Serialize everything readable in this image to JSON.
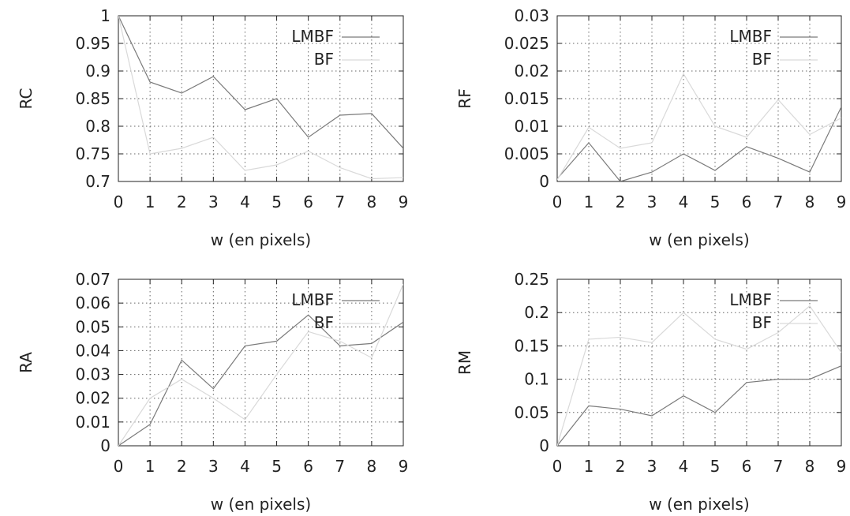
{
  "chart_data": [
    {
      "type": "line",
      "title": "",
      "xlabel": "w (en pixels)",
      "ylabel": "RC",
      "xlim": [
        0,
        9
      ],
      "ylim": [
        0.7,
        1
      ],
      "xticks": [
        "0",
        "1",
        "2",
        "3",
        "4",
        "5",
        "6",
        "7",
        "8",
        "9"
      ],
      "yticks": [
        "0.7",
        "0.75",
        "0.8",
        "0.85",
        "0.9",
        "0.95",
        "1"
      ],
      "grid": true,
      "legend": "top-right",
      "x": [
        0,
        1,
        2,
        3,
        4,
        5,
        6,
        7,
        8,
        9
      ],
      "series": [
        {
          "name": "LMBF",
          "color": "#7a7a7a",
          "values": [
            1.0,
            0.88,
            0.86,
            0.89,
            0.83,
            0.85,
            0.78,
            0.82,
            0.823,
            0.76
          ]
        },
        {
          "name": "BF",
          "color": "#d9d9d9",
          "values": [
            1.0,
            0.75,
            0.76,
            0.78,
            0.72,
            0.73,
            0.755,
            0.725,
            0.705,
            0.707
          ]
        }
      ]
    },
    {
      "type": "line",
      "title": "",
      "xlabel": "w (en pixels)",
      "ylabel": "RF",
      "xlim": [
        0,
        9
      ],
      "ylim": [
        0,
        0.03
      ],
      "xticks": [
        "0",
        "1",
        "2",
        "3",
        "4",
        "5",
        "6",
        "7",
        "8",
        "9"
      ],
      "yticks": [
        "0",
        "0.005",
        "0.01",
        "0.015",
        "0.02",
        "0.025",
        "0.03"
      ],
      "grid": true,
      "legend": "top-right",
      "x": [
        0,
        1,
        2,
        3,
        4,
        5,
        6,
        7,
        8,
        9
      ],
      "series": [
        {
          "name": "LMBF",
          "color": "#7a7a7a",
          "values": [
            0.0005,
            0.007,
            0.0,
            0.0017,
            0.005,
            0.002,
            0.0063,
            0.0042,
            0.0017,
            0.0135
          ]
        },
        {
          "name": "BF",
          "color": "#d9d9d9",
          "values": [
            0.0003,
            0.0098,
            0.006,
            0.007,
            0.0195,
            0.01,
            0.008,
            0.0148,
            0.0085,
            0.0115
          ]
        }
      ]
    },
    {
      "type": "line",
      "title": "",
      "xlabel": "w (en pixels)",
      "ylabel": "RA",
      "xlim": [
        0,
        9
      ],
      "ylim": [
        0,
        0.07
      ],
      "xticks": [
        "0",
        "1",
        "2",
        "3",
        "4",
        "5",
        "6",
        "7",
        "8",
        "9"
      ],
      "yticks": [
        "0",
        "0.01",
        "0.02",
        "0.03",
        "0.04",
        "0.05",
        "0.06",
        "0.07"
      ],
      "grid": true,
      "legend": "top-right",
      "x": [
        0,
        1,
        2,
        3,
        4,
        5,
        6,
        7,
        8,
        9
      ],
      "series": [
        {
          "name": "LMBF",
          "color": "#7a7a7a",
          "values": [
            0.0,
            0.009,
            0.036,
            0.024,
            0.042,
            0.044,
            0.055,
            0.042,
            0.043,
            0.052
          ]
        },
        {
          "name": "BF",
          "color": "#d9d9d9",
          "values": [
            0.0,
            0.02,
            0.028,
            0.02,
            0.011,
            0.03,
            0.048,
            0.044,
            0.037,
            0.068
          ]
        }
      ]
    },
    {
      "type": "line",
      "title": "",
      "xlabel": "w (en pixels)",
      "ylabel": "RM",
      "xlim": [
        0,
        9
      ],
      "ylim": [
        0,
        0.25
      ],
      "xticks": [
        "0",
        "1",
        "2",
        "3",
        "4",
        "5",
        "6",
        "7",
        "8",
        "9"
      ],
      "yticks": [
        "0",
        "0.05",
        "0.1",
        "0.15",
        "0.2",
        "0.25"
      ],
      "grid": true,
      "legend": "top-right",
      "x": [
        0,
        1,
        2,
        3,
        4,
        5,
        6,
        7,
        8,
        9
      ],
      "series": [
        {
          "name": "LMBF",
          "color": "#7a7a7a",
          "values": [
            0.0,
            0.06,
            0.055,
            0.045,
            0.075,
            0.05,
            0.095,
            0.1,
            0.1,
            0.12
          ]
        },
        {
          "name": "BF",
          "color": "#d9d9d9",
          "values": [
            0.0,
            0.16,
            0.163,
            0.155,
            0.2,
            0.16,
            0.145,
            0.17,
            0.21,
            0.14
          ]
        }
      ]
    }
  ]
}
